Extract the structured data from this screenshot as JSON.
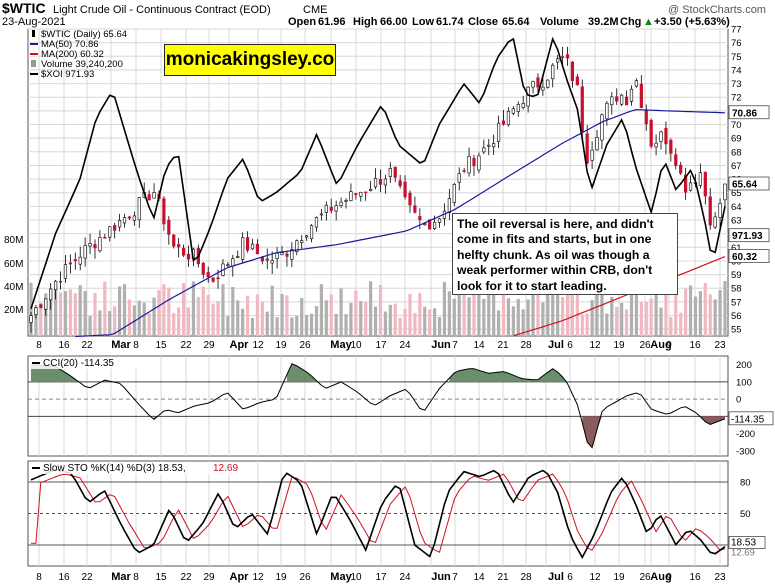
{
  "header": {
    "symbol": "$WTIC",
    "name": "Light Crude Oil - Continuous Contract (EOD)",
    "exchange": "CME",
    "date": "23-Aug-2021",
    "open_label": "Open",
    "open": "61.96",
    "high_label": "High",
    "high": "66.00",
    "low_label": "Low",
    "low": "61.74",
    "close_label": "Close",
    "close": "65.64",
    "volume_label": "Volume",
    "volume": "39.2M",
    "chg_label": "Chg",
    "chg": "+3.50 (+5.63%)",
    "chg_arrow": "▲",
    "copyright": "@ StockCharts.com"
  },
  "brand": "monicakingsley.co",
  "annotation": "The oil reversal is here, and didn't come in fits and starts, but in one helfty chunk. As oil was though a weak performer within CRB, don't look for it to start leading.",
  "legend": [
    {
      "label": "$WTIC (Daily) 65.64",
      "color": "#000000",
      "marker": "bar"
    },
    {
      "label": "MA(50) 70.86",
      "color": "#1a1aa0",
      "marker": "line"
    },
    {
      "label": "MA(200) 60.32",
      "color": "#d01020",
      "marker": "line"
    },
    {
      "label": "Volume 39,240,200",
      "color": "#999999",
      "marker": "vol"
    },
    {
      "label": "$XOI 971.93",
      "color": "#000000",
      "marker": "line"
    }
  ],
  "cci_label": "CCI(20) -114.35",
  "sto_label_main": "Slow STO %K(14) %D(3) 18.53,",
  "sto_label_d": "12.69",
  "colors": {
    "up": "#ffffff",
    "down": "#c8102e",
    "ma50": "#1a1aa0",
    "ma200": "#d01020",
    "vol_up": "#b0b0b0",
    "vol_down": "#f0b8c0",
    "cci_fill_pos": "#6a8f6a",
    "cci_fill_neg": "#8b5a5a",
    "sto_d": "#d01020",
    "grid": "#d8d8d8"
  },
  "chart_data": [
    {
      "type": "candlestick",
      "title": "$WTIC (Daily) 65.64",
      "x_tick_labels": [
        "8",
        "16",
        "22",
        "Mar",
        "8",
        "15",
        "22",
        "29",
        "Apr",
        "12",
        "19",
        "26",
        "May",
        "10",
        "17",
        "24",
        "Jun",
        "7",
        "14",
        "21",
        "28",
        "Jul",
        "6",
        "12",
        "19",
        "26",
        "Aug",
        "9",
        "16",
        "23"
      ],
      "y_axis_labels": [
        "77",
        "76",
        "75",
        "74",
        "73",
        "72",
        "71",
        "70",
        "69",
        "68",
        "67",
        "66",
        "65",
        "64",
        "63",
        "62",
        "61",
        "60",
        "59",
        "58",
        "57",
        "56",
        "55"
      ],
      "ylim": [
        54.5,
        77
      ],
      "volume_axis_labels": [
        "80M",
        "60M",
        "40M",
        "20M"
      ],
      "price_tags": {
        "close": "65.64",
        "xoi": "971.93",
        "ma50": "70.86",
        "ma200": "60.32"
      },
      "xoi_last": 971.93,
      "ma50_last": 70.86,
      "ma200_last": 60.32,
      "last_close": 65.64
    },
    {
      "type": "line",
      "title": "CCI(20) -114.35",
      "y_axis_labels": [
        "200",
        "100",
        "0",
        "-100",
        "-200",
        "-300"
      ],
      "ylim": [
        -330,
        250
      ],
      "last": -114.35,
      "last_tag": "-114.35"
    },
    {
      "type": "line",
      "title": "Slow STO %K(14) %D(3)",
      "y_axis_labels": [
        "80",
        "50",
        "20"
      ],
      "ylim": [
        0,
        100
      ],
      "k_last": 18.53,
      "d_last": 12.69,
      "k_tag": "18.53",
      "d_tag": "12.69"
    }
  ]
}
